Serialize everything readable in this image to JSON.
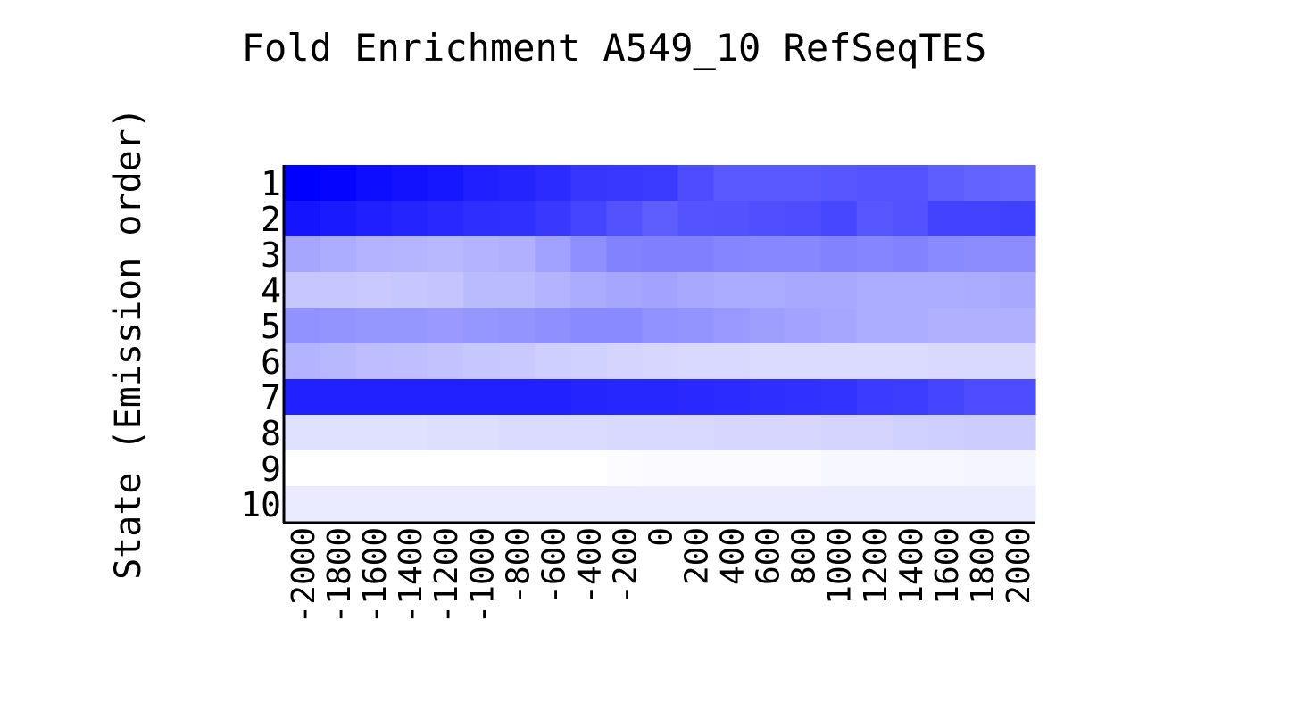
{
  "chart_data": {
    "type": "heatmap",
    "title": "Fold Enrichment A549_10 RefSeqTES",
    "ylabel": "State (Emission order)",
    "xlabel": "",
    "x_ticks": [
      "-2000",
      "-1800",
      "-1600",
      "-1400",
      "-1200",
      "-1000",
      "-800",
      "-600",
      "-400",
      "-200",
      "0",
      "200",
      "400",
      "600",
      "800",
      "1000",
      "1200",
      "1400",
      "1600",
      "1800",
      "2000"
    ],
    "y_ticks": [
      "1",
      "2",
      "3",
      "4",
      "5",
      "6",
      "7",
      "8",
      "9",
      "10"
    ],
    "color_scale": {
      "low": "#ffffff",
      "high": "#0000ff"
    },
    "value_range": [
      0,
      1
    ],
    "values": [
      [
        1.0,
        0.98,
        0.95,
        0.93,
        0.91,
        0.88,
        0.86,
        0.83,
        0.79,
        0.78,
        0.77,
        0.7,
        0.65,
        0.65,
        0.65,
        0.66,
        0.67,
        0.67,
        0.63,
        0.61,
        0.6
      ],
      [
        0.92,
        0.9,
        0.88,
        0.86,
        0.84,
        0.82,
        0.81,
        0.78,
        0.73,
        0.68,
        0.63,
        0.67,
        0.68,
        0.69,
        0.7,
        0.72,
        0.66,
        0.68,
        0.74,
        0.74,
        0.75
      ],
      [
        0.35,
        0.32,
        0.3,
        0.29,
        0.28,
        0.3,
        0.31,
        0.37,
        0.44,
        0.49,
        0.5,
        0.5,
        0.48,
        0.47,
        0.47,
        0.49,
        0.48,
        0.49,
        0.46,
        0.45,
        0.45
      ],
      [
        0.22,
        0.22,
        0.21,
        0.22,
        0.23,
        0.27,
        0.27,
        0.3,
        0.33,
        0.35,
        0.36,
        0.34,
        0.33,
        0.33,
        0.34,
        0.34,
        0.32,
        0.32,
        0.32,
        0.33,
        0.34
      ],
      [
        0.43,
        0.42,
        0.41,
        0.41,
        0.4,
        0.41,
        0.42,
        0.44,
        0.46,
        0.46,
        0.43,
        0.42,
        0.4,
        0.38,
        0.36,
        0.35,
        0.32,
        0.32,
        0.31,
        0.31,
        0.31
      ],
      [
        0.3,
        0.28,
        0.26,
        0.25,
        0.24,
        0.22,
        0.21,
        0.19,
        0.18,
        0.17,
        0.16,
        0.15,
        0.15,
        0.14,
        0.14,
        0.14,
        0.14,
        0.14,
        0.15,
        0.15,
        0.15
      ],
      [
        0.87,
        0.87,
        0.87,
        0.87,
        0.87,
        0.87,
        0.87,
        0.87,
        0.86,
        0.85,
        0.85,
        0.84,
        0.83,
        0.82,
        0.81,
        0.8,
        0.77,
        0.76,
        0.73,
        0.7,
        0.7
      ],
      [
        0.12,
        0.12,
        0.12,
        0.12,
        0.13,
        0.13,
        0.14,
        0.14,
        0.14,
        0.15,
        0.15,
        0.15,
        0.16,
        0.16,
        0.16,
        0.17,
        0.17,
        0.18,
        0.19,
        0.2,
        0.2
      ],
      [
        0.0,
        0.0,
        0.0,
        0.0,
        0.0,
        0.0,
        0.0,
        0.0,
        0.0,
        0.01,
        0.02,
        0.02,
        0.02,
        0.02,
        0.02,
        0.03,
        0.03,
        0.03,
        0.03,
        0.04,
        0.04
      ],
      [
        0.08,
        0.08,
        0.08,
        0.08,
        0.08,
        0.08,
        0.08,
        0.08,
        0.08,
        0.08,
        0.08,
        0.08,
        0.08,
        0.08,
        0.08,
        0.08,
        0.08,
        0.08,
        0.08,
        0.08,
        0.08
      ]
    ]
  }
}
